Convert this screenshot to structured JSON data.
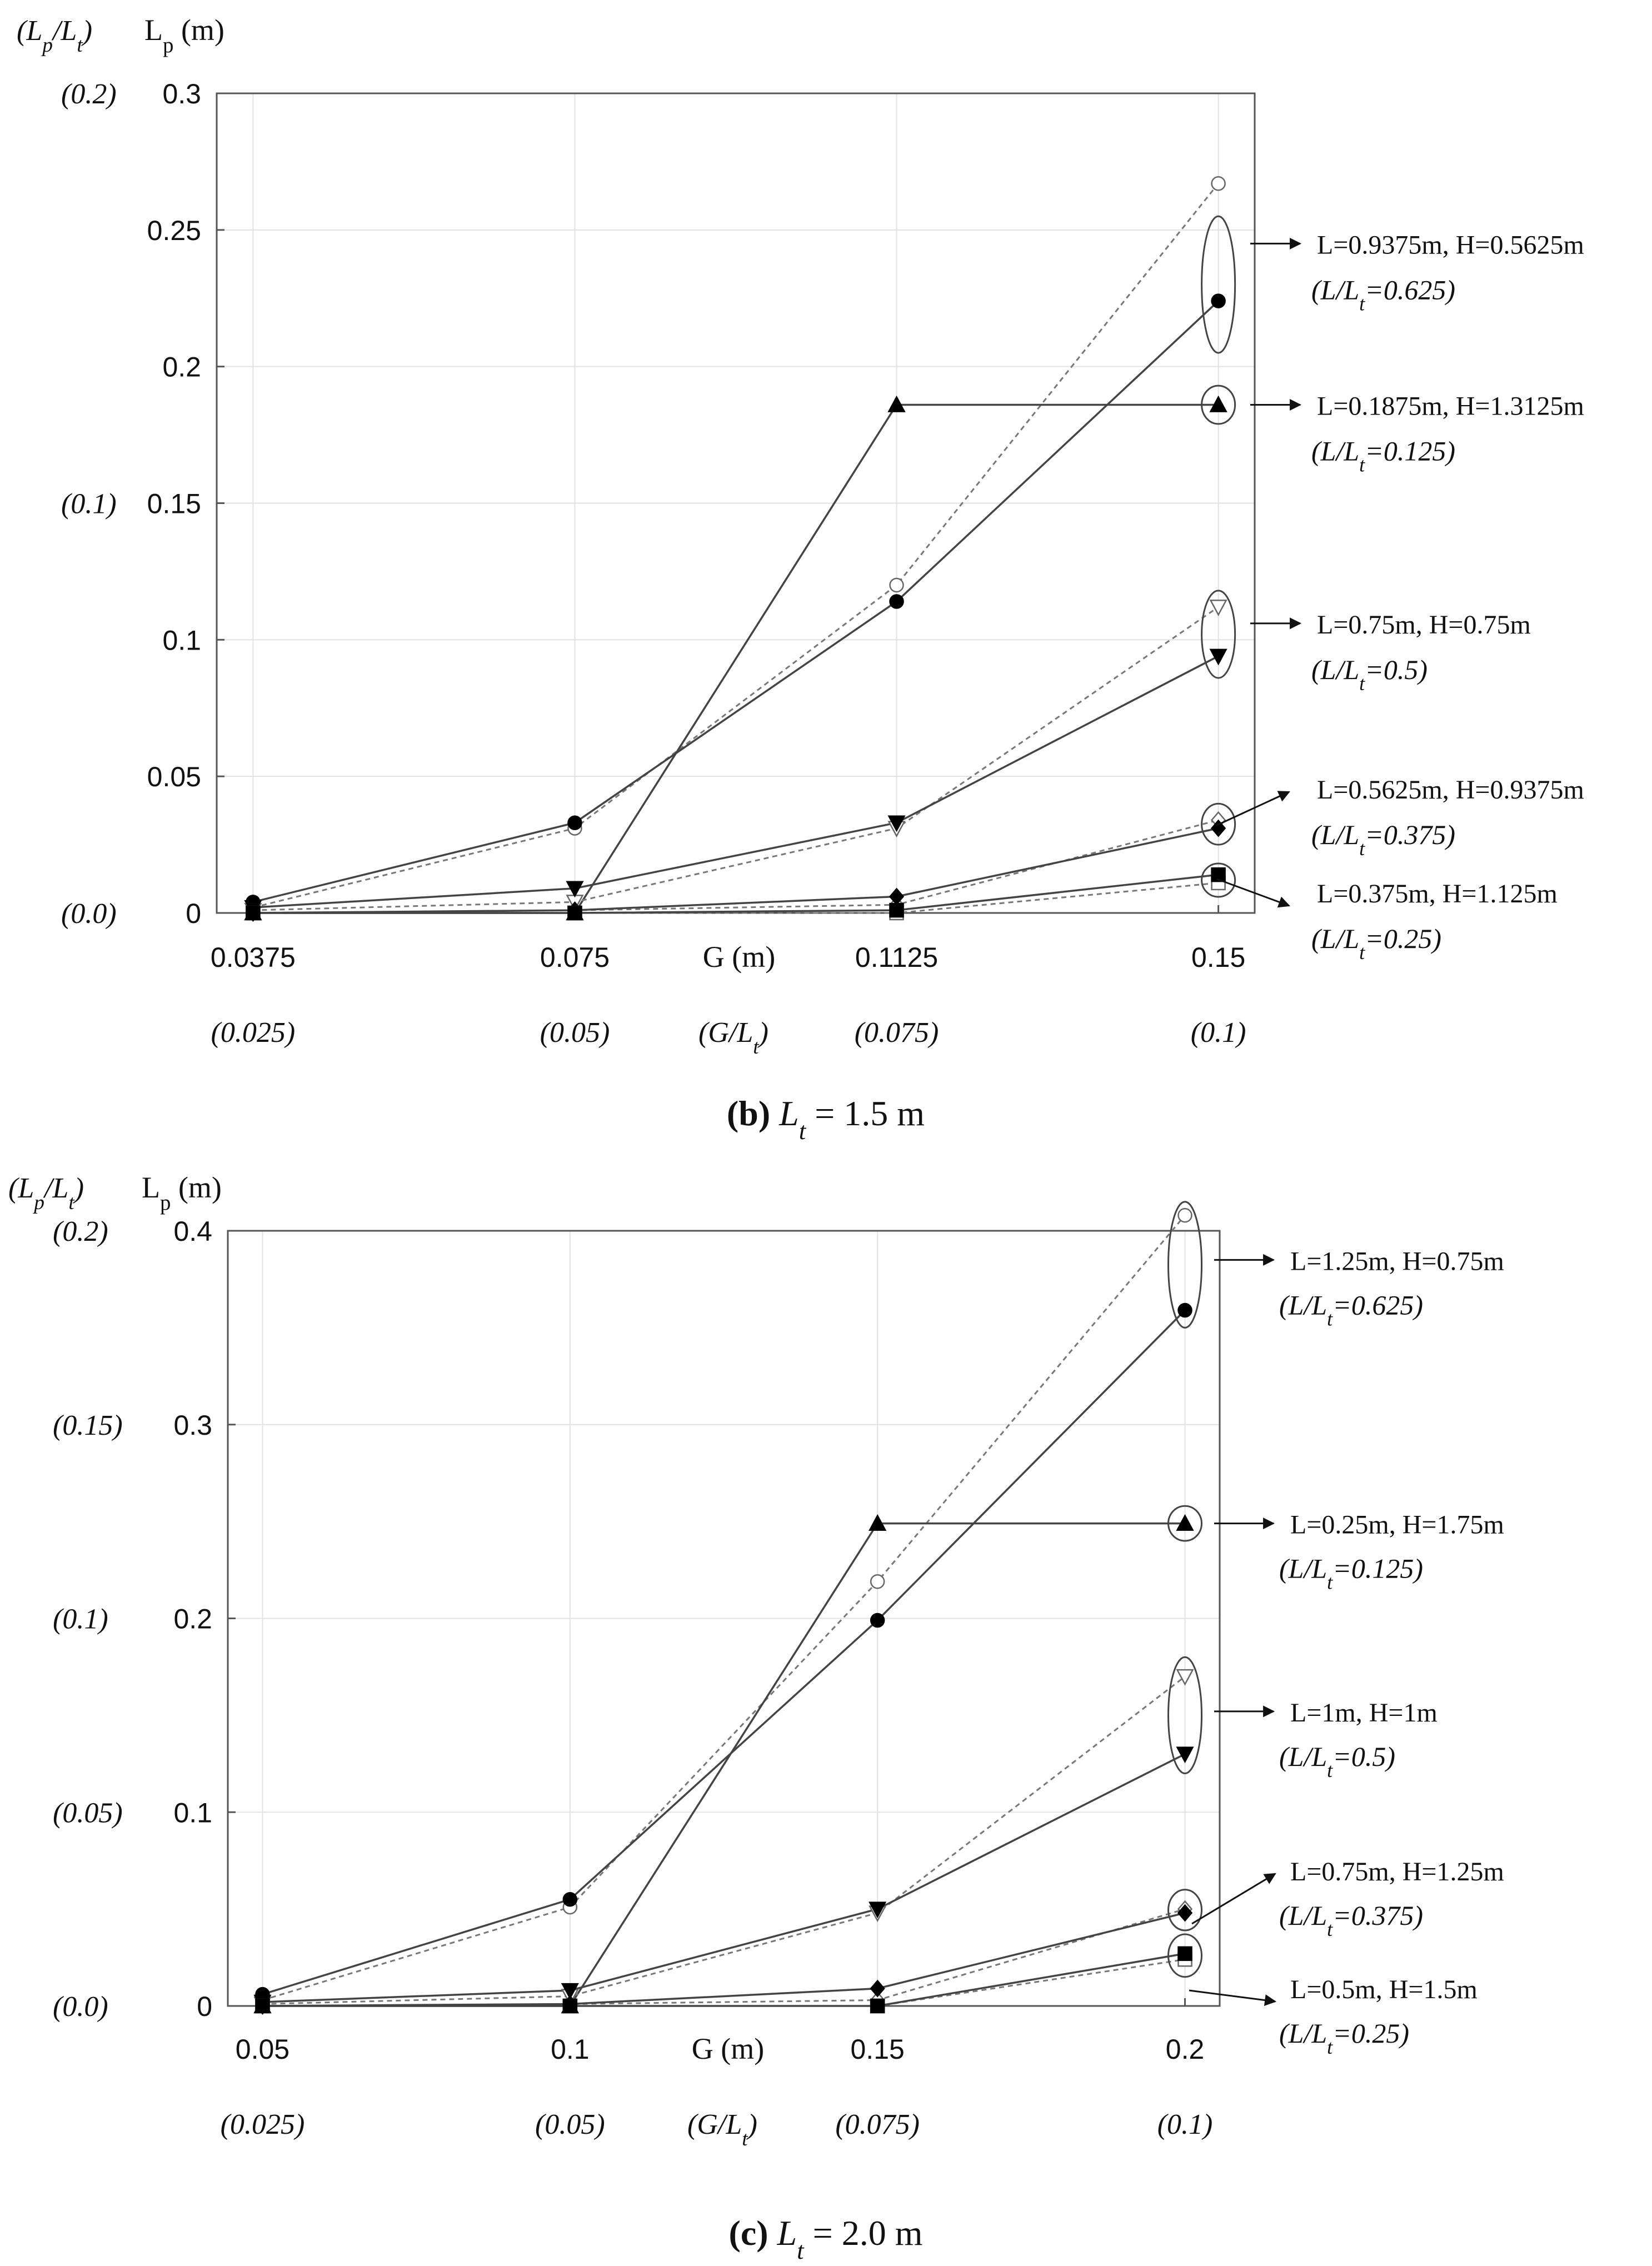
{
  "chart_data": [
    {
      "type": "line",
      "caption_letter": "(b)",
      "caption_var": "L",
      "caption_sub": "t",
      "caption_value": "=  1.5 m",
      "ylabel": "L",
      "ylabel_sub": "p",
      "ylabel_unit": " (m)",
      "ylabel_ratio": "(L",
      "ylabel_ratio_sub1": "p",
      "ylabel_ratio_mid": "/L",
      "ylabel_ratio_sub2": "t",
      "ylabel_ratio_end": ")",
      "xlabel": "G (m)",
      "xlabel_ratio": "(G/L",
      "xlabel_ratio_sub": "t",
      "xlabel_ratio_end": ")",
      "ylim": [
        0,
        0.3
      ],
      "y_ticks": [
        0,
        0.05,
        0.1,
        0.15,
        0.2,
        0.25,
        0.3
      ],
      "y_tick_labels": [
        "0",
        "0.05",
        "0.1",
        "0.15",
        "0.2",
        "0.25",
        "0.3"
      ],
      "y_ratio_ticks": [
        {
          "value": 0,
          "label": "(0.0)"
        },
        {
          "value": 0.15,
          "label": "(0.1)"
        },
        {
          "value": 0.3,
          "label": "(0.2)"
        }
      ],
      "x_ticks": [
        0.0375,
        0.075,
        0.1125,
        0.15
      ],
      "x_tick_labels": [
        "0.0375",
        "0.075",
        "0.1125",
        "0.15"
      ],
      "x_ratio_labels": [
        "(0.025)",
        "(0.05)",
        "(0.075)",
        "(0.1)"
      ],
      "x": [
        0.0375,
        0.075,
        0.1125,
        0.15
      ],
      "grid": true,
      "series": [
        {
          "name": "L=0.9375m, H=0.5625m dashed",
          "marker": "circle-open",
          "dashed": true,
          "values": [
            0.002,
            0.031,
            0.12,
            0.267
          ]
        },
        {
          "name": "L=0.9375m, H=0.5625m",
          "marker": "circle",
          "dashed": false,
          "values": [
            0.004,
            0.033,
            0.114,
            0.224
          ]
        },
        {
          "name": "L=0.1875m, H=1.3125m dashed",
          "marker": "triangle-up-open",
          "dashed": true,
          "values": [
            0.0,
            0.0,
            0.186,
            0.186
          ]
        },
        {
          "name": "L=0.1875m, H=1.3125m",
          "marker": "triangle-up",
          "dashed": false,
          "values": [
            0.0,
            0.0,
            0.186,
            0.186
          ]
        },
        {
          "name": "L=0.75m, H=0.75m dashed",
          "marker": "triangle-down-open",
          "dashed": true,
          "values": [
            0.001,
            0.004,
            0.031,
            0.112
          ]
        },
        {
          "name": "L=0.75m, H=0.75m",
          "marker": "triangle-down",
          "dashed": false,
          "values": [
            0.002,
            0.009,
            0.033,
            0.094
          ]
        },
        {
          "name": "L=0.5625m, H=0.9375m dashed",
          "marker": "diamond-open",
          "dashed": true,
          "values": [
            0.0,
            0.001,
            0.003,
            0.034
          ]
        },
        {
          "name": "L=0.5625m, H=0.9375m",
          "marker": "diamond",
          "dashed": false,
          "values": [
            0.0,
            0.001,
            0.006,
            0.031
          ]
        },
        {
          "name": "L=0.375m, H=1.125m dashed",
          "marker": "square-open",
          "dashed": true,
          "values": [
            0.0,
            0.0,
            0.0,
            0.011
          ]
        },
        {
          "name": "L=0.375m, H=1.125m",
          "marker": "square",
          "dashed": false,
          "values": [
            0.0,
            0.0,
            0.001,
            0.014
          ]
        }
      ],
      "annotations": [
        {
          "label": "L=0.9375m, H=0.5625m",
          "ratio": "=0.625)",
          "target_y": 0.245,
          "arrow": "right",
          "ellipse": [
            0.255,
            0.205
          ]
        },
        {
          "label": "L=0.1875m, H=1.3125m",
          "ratio": "=0.125)",
          "target_y": 0.186,
          "arrow": "right",
          "ellipse": [
            0.193,
            0.179
          ]
        },
        {
          "label": "L=0.75m, H=0.75m",
          "ratio": "=0.5)",
          "target_y": 0.106,
          "arrow": "right",
          "ellipse": [
            0.118,
            0.086
          ]
        },
        {
          "label": "L=0.5625m, H=0.9375m",
          "ratio": "=0.375)",
          "target_y": 0.032,
          "arrow": "diag-up",
          "ellipse": [
            0.04,
            0.025
          ]
        },
        {
          "label": "L=0.375m, H=1.125m",
          "ratio": "=0.25)",
          "target_y": 0.012,
          "arrow": "diag-down",
          "ellipse": [
            0.018,
            0.006
          ]
        }
      ]
    },
    {
      "type": "line",
      "caption_letter": "(c)",
      "caption_var": "L",
      "caption_sub": "t",
      "caption_value": "=  2.0 m",
      "ylabel": "L",
      "ylabel_sub": "p",
      "ylabel_unit": " (m)",
      "ylabel_ratio": "(L",
      "ylabel_ratio_sub1": "p",
      "ylabel_ratio_mid": "/L",
      "ylabel_ratio_sub2": "t",
      "ylabel_ratio_end": ")",
      "xlabel": "G (m)",
      "xlabel_ratio": "(G/L",
      "xlabel_ratio_sub": "t",
      "xlabel_ratio_end": ")",
      "ylim": [
        0,
        0.4
      ],
      "y_ticks": [
        0,
        0.1,
        0.2,
        0.3,
        0.4
      ],
      "y_tick_labels": [
        "0",
        "0.1",
        "0.2",
        "0.3",
        "0.4"
      ],
      "y_ratio_ticks": [
        {
          "value": 0,
          "label": "(0.0)"
        },
        {
          "value": 0.1,
          "label": "(0.05)"
        },
        {
          "value": 0.2,
          "label": "(0.1)"
        },
        {
          "value": 0.3,
          "label": "(0.15)"
        },
        {
          "value": 0.4,
          "label": "(0.2)"
        }
      ],
      "x_ticks": [
        0.05,
        0.1,
        0.15,
        0.2
      ],
      "x_tick_labels": [
        "0.05",
        "0.1",
        "0.15",
        "0.2"
      ],
      "x_ratio_labels": [
        "(0.025)",
        "(0.05)",
        "(0.075)",
        "(0.1)"
      ],
      "x": [
        0.05,
        0.1,
        0.15,
        0.2
      ],
      "grid": true,
      "series": [
        {
          "name": "L=1.25m, H=0.75m dashed",
          "marker": "circle-open",
          "dashed": true,
          "values": [
            0.003,
            0.051,
            0.219,
            0.408
          ]
        },
        {
          "name": "L=1.25m, H=0.75m",
          "marker": "circle",
          "dashed": false,
          "values": [
            0.006,
            0.055,
            0.199,
            0.359
          ]
        },
        {
          "name": "L=0.25m, H=1.75m dashed",
          "marker": "triangle-up-open",
          "dashed": true,
          "values": [
            0.0,
            0.0,
            0.249,
            0.249
          ]
        },
        {
          "name": "L=0.25m, H=1.75m",
          "marker": "triangle-up",
          "dashed": false,
          "values": [
            0.0,
            0.0,
            0.249,
            0.249
          ]
        },
        {
          "name": "L=1m, H=1m dashed",
          "marker": "triangle-down-open",
          "dashed": true,
          "values": [
            0.001,
            0.005,
            0.048,
            0.17
          ]
        },
        {
          "name": "L=1m, H=1m",
          "marker": "triangle-down",
          "dashed": false,
          "values": [
            0.002,
            0.008,
            0.05,
            0.13
          ]
        },
        {
          "name": "L=0.75m, H=1.25m dashed",
          "marker": "diamond-open",
          "dashed": true,
          "values": [
            0.0,
            0.001,
            0.003,
            0.05
          ]
        },
        {
          "name": "L=0.75m, H=1.25m",
          "marker": "diamond",
          "dashed": false,
          "values": [
            0.0,
            0.001,
            0.009,
            0.048
          ]
        },
        {
          "name": "L=0.5m, H=1.5m dashed",
          "marker": "square-open",
          "dashed": true,
          "values": [
            0.0,
            0.0,
            0.0,
            0.024
          ]
        },
        {
          "name": "L=0.5m, H=1.5m",
          "marker": "square",
          "dashed": false,
          "values": [
            0.0,
            0.0,
            0.0,
            0.027
          ]
        }
      ],
      "annotations": [
        {
          "label": "L=1.25m, H=0.75m",
          "ratio": "=0.625)",
          "target_y": 0.385,
          "arrow": "right",
          "ellipse": [
            0.415,
            0.35
          ]
        },
        {
          "label": "L=0.25m, H=1.75m",
          "ratio": "=0.125)",
          "target_y": 0.249,
          "arrow": "right",
          "ellipse": [
            0.258,
            0.24
          ]
        },
        {
          "label": "L=1m, H=1m",
          "ratio": "=0.5)",
          "target_y": 0.152,
          "arrow": "right",
          "ellipse": [
            0.18,
            0.12
          ]
        },
        {
          "label": "L=0.75m, H=1.25m",
          "ratio": "=0.375)",
          "target_y": 0.049,
          "arrow": "diag-up",
          "ellipse": [
            0.06,
            0.039
          ]
        },
        {
          "label": "L=0.5m, H=1.5m",
          "ratio": "=0.25)",
          "target_y": 0.026,
          "arrow": "diag-down",
          "ellipse": [
            0.037,
            0.015
          ]
        }
      ]
    }
  ]
}
